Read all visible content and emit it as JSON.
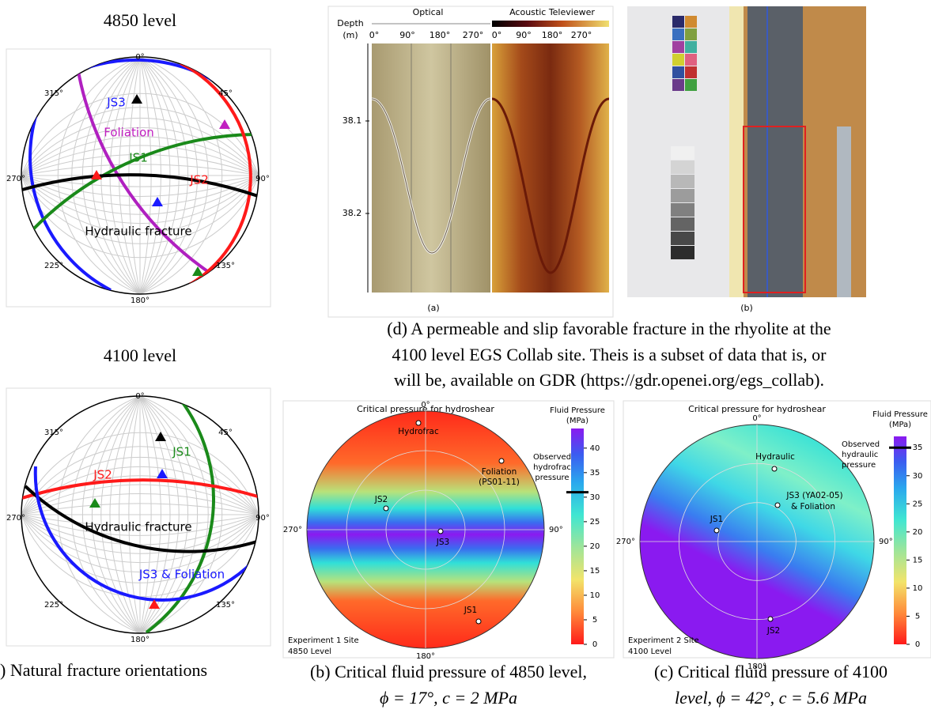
{
  "panel_a": {
    "top_title": "4850 level",
    "bottom_title": "4100 level",
    "caption": ") Natural fracture orientations",
    "stereonet_4850": {
      "azimuths": [
        "0°",
        "45°",
        "90°",
        "135°",
        "180°",
        "225°",
        "270°",
        "315°"
      ],
      "labels": [
        "JS3",
        "Foliation",
        "JS1",
        "JS2",
        "Hydraulic fracture"
      ]
    },
    "stereonet_4100": {
      "azimuths": [
        "0°",
        "45°",
        "90°",
        "135°",
        "180°",
        "225°",
        "270°",
        "315°"
      ],
      "labels": [
        "JS1",
        "JS2",
        "Hydraulic fracture",
        "JS3 & Foliation"
      ]
    }
  },
  "panel_b": {
    "title": "Critical pressure for hydroshear",
    "azimuths": [
      "0°",
      "90°",
      "180°",
      "270°"
    ],
    "points": [
      "Hydrofrac",
      "Foliation",
      "(PS01-11)",
      "JS2",
      "JS3",
      "JS1"
    ],
    "site": [
      "Experiment 1 Site",
      "4850 Level"
    ],
    "colorbar": {
      "title": [
        "Fluid Pressure",
        "(MPa)"
      ],
      "range": [
        0,
        44
      ],
      "ticks": [
        0,
        5,
        10,
        15,
        20,
        25,
        30,
        35,
        40
      ],
      "observed_label": [
        "Observed",
        "hydrofrac",
        "pressure"
      ],
      "observed_value": 31
    },
    "caption": [
      "(b) Critical fluid pressure of 4850 level,",
      "ϕ = 17°, c = 2 MPa"
    ]
  },
  "panel_c": {
    "title": "Critical pressure for hydroshear",
    "azimuths": [
      "0°",
      "90°",
      "180°",
      "270°"
    ],
    "points": [
      "Hydraulic",
      "JS3 (YA02-05)",
      "& Foliation",
      "JS1",
      "JS2"
    ],
    "site": [
      "Experiment 2 Site",
      "4100 Level"
    ],
    "colorbar": {
      "title": [
        "Fluid Pressure",
        "(MPa)"
      ],
      "range": [
        0,
        37
      ],
      "ticks": [
        0,
        5,
        10,
        15,
        20,
        25,
        30,
        35
      ],
      "observed_label": [
        "Observed",
        "hydraulic",
        "pressure"
      ],
      "observed_value": 35
    },
    "caption": [
      "(c) Critical fluid pressure of 4100",
      "level,  ϕ = 42°, c = 5.6 MPa"
    ]
  },
  "panel_d": {
    "depth_label": [
      "Depth",
      "(m)"
    ],
    "optical": "Optical",
    "acoustic": "Acoustic Televiewer",
    "optical_ticks": [
      "0°",
      "90°",
      "180°",
      "270°"
    ],
    "acoustic_ticks": [
      "0°",
      "90°",
      "180°",
      "270°"
    ],
    "depth_ticks": [
      "38.1",
      "38.2"
    ],
    "sub_a": "(a)",
    "sub_b": "(b)",
    "caption": [
      "(d) A permeable and slip favorable fracture in the rhyolite at the",
      "4100 level EGS Collab site. Theis is a subset of data that is, or",
      "will be, available on GDR (https://gdr.openei.org/egs_collab)."
    ]
  }
}
